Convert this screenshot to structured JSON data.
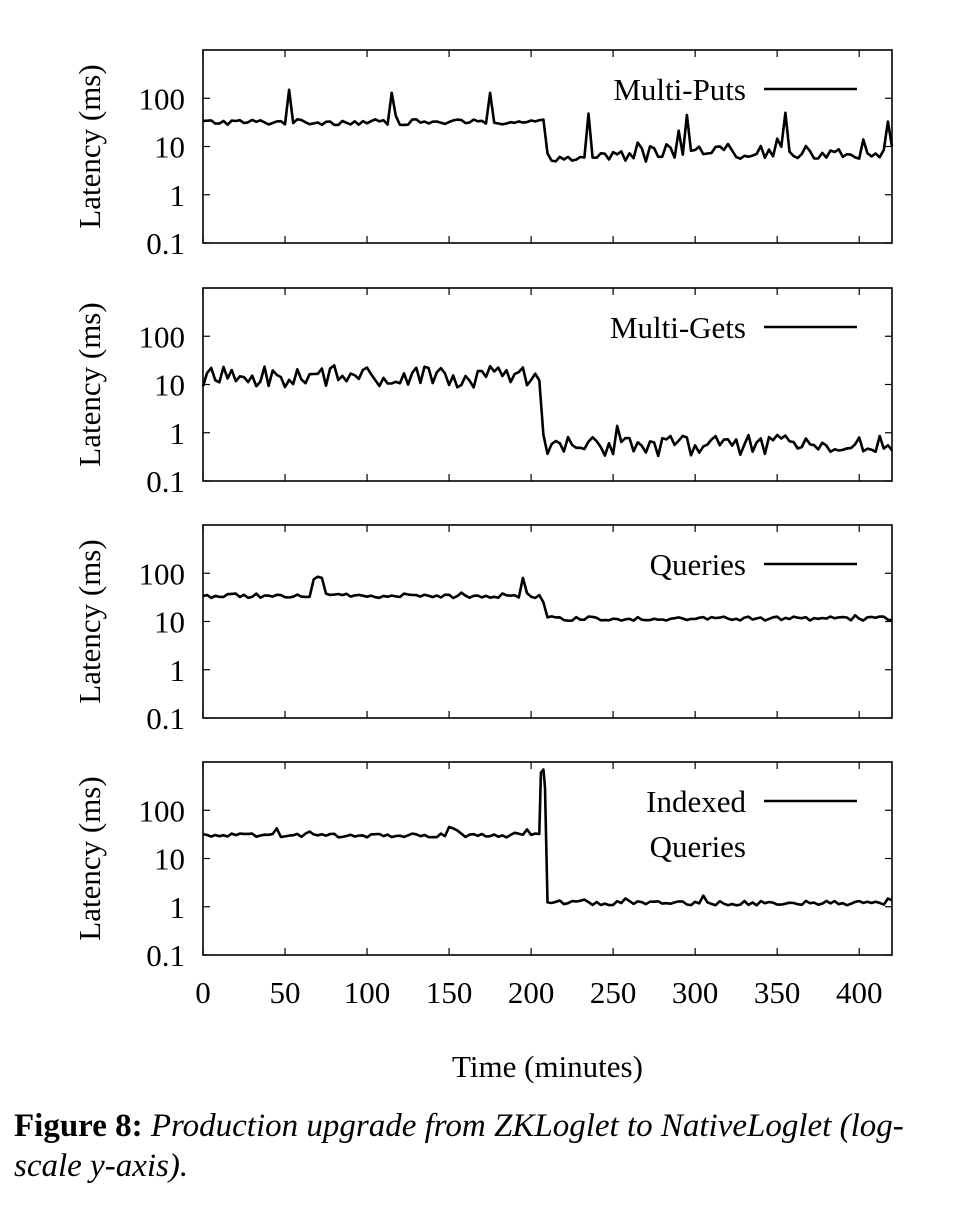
{
  "chart_data": [
    {
      "type": "line",
      "series_name": "Multi-Puts",
      "legend_lines": [
        "Multi-Puts"
      ],
      "ylabel": "Latency (ms)",
      "yscale": "log",
      "ylim": [
        0.1,
        1000
      ],
      "yticks": [
        0.1,
        1,
        10,
        100
      ],
      "ytick_labels": [
        "0.1",
        "1",
        "10",
        "100"
      ],
      "xlim": [
        0,
        420
      ],
      "x_step": 2.5,
      "segments": [
        {
          "from": 0,
          "to": 207.5,
          "base": 32,
          "noise": 0.12,
          "spike_chance": 0.05,
          "spike_max": 1.5
        },
        {
          "from": 210,
          "to": 240,
          "base": 5.5,
          "noise": 0.1,
          "spike_chance": 0.03,
          "spike_max": 1.4
        },
        {
          "from": 242.5,
          "to": 270,
          "base": 6.5,
          "noise": 0.3,
          "spike_chance": 0.15,
          "spike_max": 2.2
        },
        {
          "from": 272.5,
          "to": 420,
          "base": 7.5,
          "noise": 0.28,
          "spike_chance": 0.12,
          "spike_max": 2.2
        }
      ],
      "spikes": [
        {
          "x": 53,
          "y": 150
        },
        {
          "x": 115,
          "y": 130
        },
        {
          "x": 175,
          "y": 130
        },
        {
          "x": 235,
          "y": 48
        },
        {
          "x": 295,
          "y": 45
        },
        {
          "x": 355,
          "y": 50
        },
        {
          "x": 418,
          "y": 33
        }
      ]
    },
    {
      "type": "line",
      "series_name": "Multi-Gets",
      "legend_lines": [
        "Multi-Gets"
      ],
      "ylabel": "Latency (ms)",
      "yscale": "log",
      "ylim": [
        0.1,
        1000
      ],
      "yticks": [
        0.1,
        1,
        10,
        100
      ],
      "ytick_labels": [
        "0.1",
        "1",
        "10",
        "100"
      ],
      "xlim": [
        0,
        420
      ],
      "x_step": 2.5,
      "segments": [
        {
          "from": 0,
          "to": 205,
          "base": 14,
          "noise": 0.45,
          "spike_chance": 0.05,
          "spike_max": 1.6
        },
        {
          "from": 207.5,
          "to": 420,
          "base": 0.55,
          "noise": 0.45,
          "spike_chance": 0.05,
          "spike_max": 1.6
        }
      ],
      "spikes": [
        {
          "x": 175,
          "y": 24
        }
      ]
    },
    {
      "type": "line",
      "series_name": "Queries",
      "legend_lines": [
        "Queries"
      ],
      "ylabel": "Latency (ms)",
      "yscale": "log",
      "ylim": [
        0.1,
        1000
      ],
      "yticks": [
        0.1,
        1,
        10,
        100
      ],
      "ytick_labels": [
        "0.1",
        "1",
        "10",
        "100"
      ],
      "xlim": [
        0,
        420
      ],
      "x_step": 2.5,
      "segments": [
        {
          "from": 0,
          "to": 205,
          "base": 34,
          "noise": 0.1,
          "spike_chance": 0.06,
          "spike_max": 1.3
        },
        {
          "from": 207.5,
          "to": 207.5,
          "base": 25,
          "noise": 0,
          "spike_chance": 0,
          "spike_max": 1
        },
        {
          "from": 210,
          "to": 420,
          "base": 11.5,
          "noise": 0.09,
          "spike_chance": 0.02,
          "spike_max": 1.2
        }
      ],
      "spikes": [
        {
          "x": 67,
          "y": 75
        },
        {
          "x": 70,
          "y": 85
        },
        {
          "x": 73,
          "y": 80
        },
        {
          "x": 195,
          "y": 80
        }
      ]
    },
    {
      "type": "line",
      "series_name": "Indexed Queries",
      "legend_lines": [
        "Indexed",
        "Queries"
      ],
      "ylabel": "Latency (ms)",
      "yscale": "log",
      "ylim": [
        0.1,
        1000
      ],
      "yticks": [
        0.1,
        1,
        10,
        100
      ],
      "ytick_labels": [
        "0.1",
        "1",
        "10",
        "100"
      ],
      "xlim": [
        0,
        420
      ],
      "x_step": 2.5,
      "xticks": [
        0,
        50,
        100,
        150,
        200,
        250,
        300,
        350,
        400
      ],
      "xtick_labels": [
        "0",
        "50",
        "100",
        "150",
        "200",
        "250",
        "300",
        "350",
        "400"
      ],
      "xlabel": "Time (minutes)",
      "segments": [
        {
          "from": 0,
          "to": 205,
          "base": 30,
          "noise": 0.08,
          "spike_chance": 0.05,
          "spike_max": 1.4
        },
        {
          "from": 210,
          "to": 420,
          "base": 1.2,
          "noise": 0.1,
          "spike_chance": 0.05,
          "spike_max": 1.5
        }
      ],
      "spikes": [
        {
          "x": 150,
          "y": 45
        },
        {
          "x": 153,
          "y": 42
        },
        {
          "x": 206,
          "y": 600
        },
        {
          "x": 207.5,
          "y": 700
        },
        {
          "x": 208.5,
          "y": 300
        }
      ]
    }
  ],
  "caption": {
    "label": "Figure 8:",
    "text": " Production upgrade from ZKLoglet to NativeLoglet (log-scale y-axis)."
  }
}
